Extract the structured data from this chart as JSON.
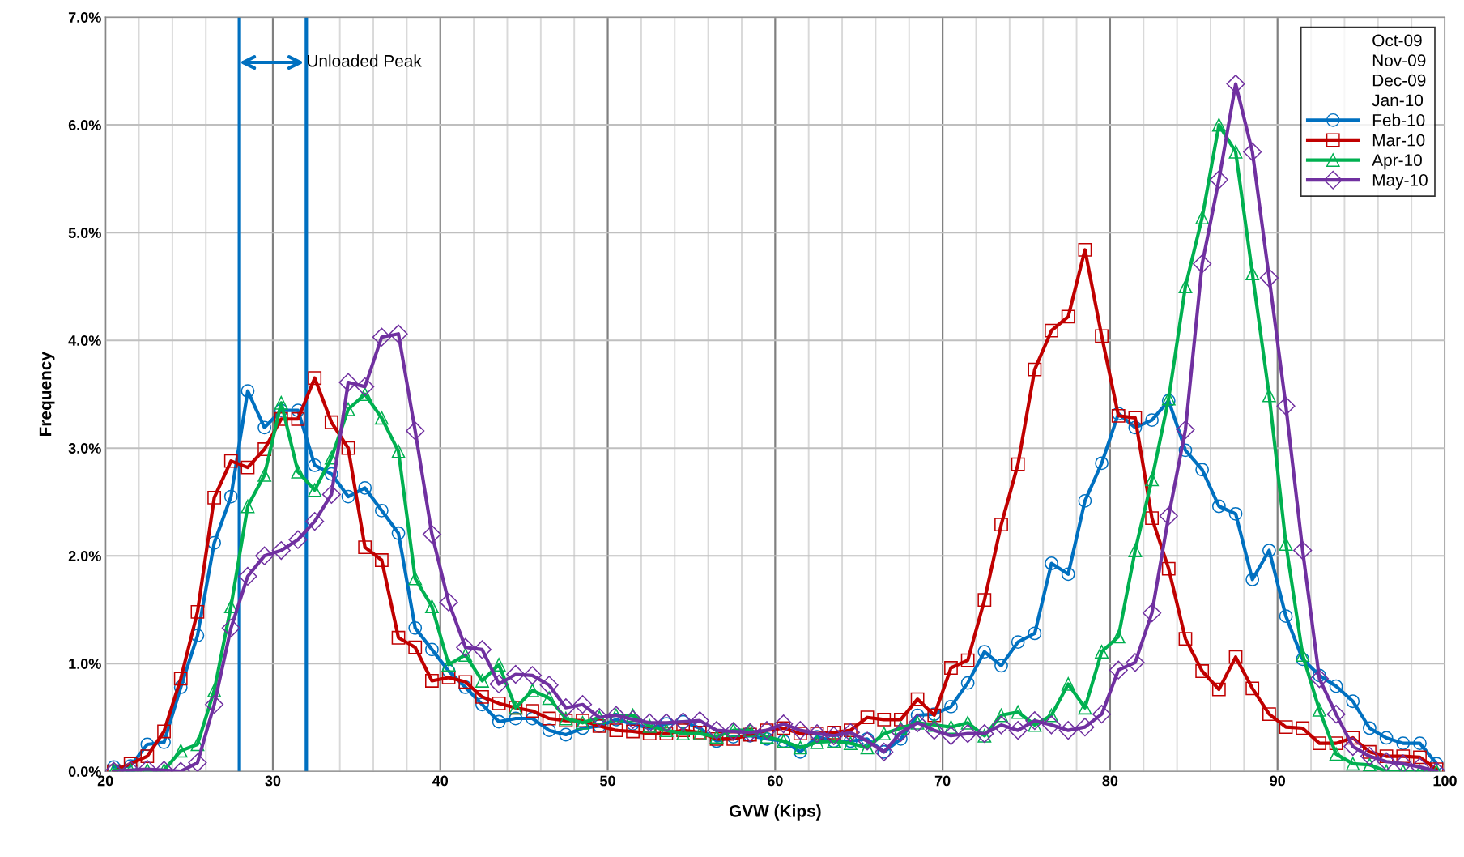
{
  "chart_data": {
    "type": "line",
    "xlabel": "GVW (Kips)",
    "ylabel": "Frequency",
    "x": [
      20.5,
      21.5,
      22.5,
      23.5,
      24.5,
      25.5,
      26.5,
      27.5,
      28.5,
      29.5,
      30.5,
      31.5,
      32.5,
      33.5,
      34.5,
      35.5,
      36.5,
      37.5,
      38.5,
      39.5,
      40.5,
      41.5,
      42.5,
      43.5,
      44.5,
      45.5,
      46.5,
      47.5,
      48.5,
      49.5,
      50.5,
      51.5,
      52.5,
      53.5,
      54.5,
      55.5,
      56.5,
      57.5,
      58.5,
      59.5,
      60.5,
      61.5,
      62.5,
      63.5,
      64.5,
      65.5,
      66.5,
      67.5,
      68.5,
      69.5,
      70.5,
      71.5,
      72.5,
      73.5,
      74.5,
      75.5,
      76.5,
      77.5,
      78.5,
      79.5,
      80.5,
      81.5,
      82.5,
      83.5,
      84.5,
      85.5,
      86.5,
      87.5,
      88.5,
      89.5,
      90.5,
      91.5,
      92.5,
      93.5,
      94.5,
      95.5,
      96.5,
      97.5,
      98.5,
      99.5
    ],
    "series": [
      {
        "name": "Oct-09",
        "values": [
          null,
          null,
          null,
          null,
          null,
          null,
          null,
          null,
          null,
          null,
          null,
          null,
          null,
          null,
          null,
          null,
          null,
          null,
          null,
          null,
          null,
          null,
          null,
          null,
          null,
          null,
          null,
          null,
          null,
          null,
          null,
          null,
          null,
          null,
          null,
          null,
          null,
          null,
          null,
          null,
          null,
          null,
          null,
          null,
          null,
          null,
          null,
          null,
          null,
          null,
          null,
          null,
          null,
          null,
          null,
          null,
          null,
          null,
          null,
          null,
          null,
          null,
          null,
          null,
          null,
          null,
          null,
          null,
          null,
          null,
          null,
          null,
          null,
          null,
          null,
          null,
          null,
          null,
          null,
          null
        ]
      },
      {
        "name": "Nov-09",
        "values": [
          null,
          null,
          null,
          null,
          null,
          null,
          null,
          null,
          null,
          null,
          null,
          null,
          null,
          null,
          null,
          null,
          null,
          null,
          null,
          null,
          null,
          null,
          null,
          null,
          null,
          null,
          null,
          null,
          null,
          null,
          null,
          null,
          null,
          null,
          null,
          null,
          null,
          null,
          null,
          null,
          null,
          null,
          null,
          null,
          null,
          null,
          null,
          null,
          null,
          null,
          null,
          null,
          null,
          null,
          null,
          null,
          null,
          null,
          null,
          null,
          null,
          null,
          null,
          null,
          null,
          null,
          null,
          null,
          null,
          null,
          null,
          null,
          null,
          null,
          null,
          null,
          null,
          null,
          null,
          null
        ]
      },
      {
        "name": "Dec-09",
        "values": [
          null,
          null,
          null,
          null,
          null,
          null,
          null,
          null,
          null,
          null,
          null,
          null,
          null,
          null,
          null,
          null,
          null,
          null,
          null,
          null,
          null,
          null,
          null,
          null,
          null,
          null,
          null,
          null,
          null,
          null,
          null,
          null,
          null,
          null,
          null,
          null,
          null,
          null,
          null,
          null,
          null,
          null,
          null,
          null,
          null,
          null,
          null,
          null,
          null,
          null,
          null,
          null,
          null,
          null,
          null,
          null,
          null,
          null,
          null,
          null,
          null,
          null,
          null,
          null,
          null,
          null,
          null,
          null,
          null,
          null,
          null,
          null,
          null,
          null,
          null,
          null,
          null,
          null,
          null,
          null
        ]
      },
      {
        "name": "Jan-10",
        "values": [
          null,
          null,
          null,
          null,
          null,
          null,
          null,
          null,
          null,
          null,
          null,
          null,
          null,
          null,
          null,
          null,
          null,
          null,
          null,
          null,
          null,
          null,
          null,
          null,
          null,
          null,
          null,
          null,
          null,
          null,
          null,
          null,
          null,
          null,
          null,
          null,
          null,
          null,
          null,
          null,
          null,
          null,
          null,
          null,
          null,
          null,
          null,
          null,
          null,
          null,
          null,
          null,
          null,
          null,
          null,
          null,
          null,
          null,
          null,
          null,
          null,
          null,
          null,
          null,
          null,
          null,
          null,
          null,
          null,
          null,
          null,
          null,
          null,
          null,
          null,
          null,
          null,
          null,
          null,
          null
        ]
      },
      {
        "name": "Feb-10",
        "color": "#0070c0",
        "marker": "circle",
        "values": [
          0.04,
          0.05,
          0.25,
          0.27,
          0.78,
          1.26,
          2.12,
          2.55,
          3.53,
          3.19,
          3.35,
          3.35,
          2.84,
          2.76,
          2.55,
          2.63,
          2.42,
          2.21,
          1.33,
          1.13,
          0.93,
          0.78,
          0.62,
          0.46,
          0.49,
          0.49,
          0.38,
          0.34,
          0.4,
          0.42,
          0.48,
          0.44,
          0.4,
          0.44,
          0.46,
          0.4,
          0.28,
          0.32,
          0.33,
          0.3,
          0.28,
          0.18,
          0.32,
          0.28,
          0.28,
          0.3,
          0.18,
          0.3,
          0.52,
          0.53,
          0.6,
          0.82,
          1.11,
          0.98,
          1.2,
          1.28,
          1.93,
          1.83,
          2.51,
          2.86,
          3.32,
          3.19,
          3.26,
          3.44,
          2.98,
          2.8,
          2.46,
          2.39,
          1.78,
          2.05,
          1.44,
          1.04,
          0.89,
          0.79,
          0.65,
          0.4,
          0.31,
          0.26,
          0.26,
          0.07
        ]
      },
      {
        "name": "Mar-10",
        "color": "#c00000",
        "marker": "square",
        "values": [
          0.0,
          0.07,
          0.14,
          0.37,
          0.86,
          1.48,
          2.54,
          2.88,
          2.82,
          2.99,
          3.27,
          3.27,
          3.65,
          3.24,
          3.0,
          2.08,
          1.96,
          1.24,
          1.15,
          0.84,
          0.87,
          0.83,
          0.69,
          0.63,
          0.59,
          0.56,
          0.49,
          0.47,
          0.47,
          0.42,
          0.38,
          0.37,
          0.35,
          0.35,
          0.38,
          0.36,
          0.3,
          0.3,
          0.34,
          0.38,
          0.4,
          0.35,
          0.35,
          0.36,
          0.38,
          0.5,
          0.48,
          0.48,
          0.67,
          0.52,
          0.96,
          1.03,
          1.59,
          2.29,
          2.85,
          3.73,
          4.09,
          4.22,
          4.84,
          4.04,
          3.3,
          3.28,
          2.35,
          1.88,
          1.23,
          0.93,
          0.76,
          1.06,
          0.77,
          0.53,
          0.41,
          0.4,
          0.26,
          0.26,
          0.31,
          0.18,
          0.14,
          0.14,
          0.13,
          0.02
        ]
      },
      {
        "name": "Apr-10",
        "color": "#00b050",
        "marker": "triangle",
        "values": [
          0.01,
          0.01,
          0.01,
          0.01,
          0.19,
          0.25,
          0.75,
          1.53,
          2.46,
          2.75,
          3.42,
          2.78,
          2.61,
          2.91,
          3.36,
          3.5,
          3.28,
          2.97,
          1.79,
          1.53,
          0.99,
          1.08,
          0.84,
          0.99,
          0.59,
          0.75,
          0.68,
          0.49,
          0.45,
          0.5,
          0.52,
          0.52,
          0.42,
          0.38,
          0.35,
          0.35,
          0.32,
          0.38,
          0.38,
          0.32,
          0.28,
          0.22,
          0.27,
          0.28,
          0.26,
          0.22,
          0.35,
          0.4,
          0.45,
          0.43,
          0.41,
          0.45,
          0.33,
          0.52,
          0.55,
          0.43,
          0.52,
          0.81,
          0.59,
          1.11,
          1.25,
          2.05,
          2.71,
          3.46,
          4.5,
          5.14,
          6.0,
          5.75,
          4.62,
          3.49,
          2.11,
          1.08,
          0.57,
          0.16,
          0.07,
          0.06,
          0.0,
          0.0,
          0.0,
          0.0
        ]
      },
      {
        "name": "May-10",
        "color": "#7030a0",
        "marker": "diamond",
        "values": [
          0.0,
          0.01,
          0.02,
          0.01,
          0.0,
          0.08,
          0.62,
          1.33,
          1.81,
          2.0,
          2.05,
          2.15,
          2.32,
          2.57,
          3.61,
          3.57,
          4.03,
          4.06,
          3.16,
          2.2,
          1.57,
          1.15,
          1.13,
          0.81,
          0.9,
          0.89,
          0.8,
          0.59,
          0.62,
          0.5,
          0.52,
          0.48,
          0.45,
          0.45,
          0.46,
          0.47,
          0.38,
          0.37,
          0.36,
          0.38,
          0.44,
          0.38,
          0.35,
          0.33,
          0.36,
          0.28,
          0.18,
          0.36,
          0.45,
          0.38,
          0.33,
          0.35,
          0.35,
          0.43,
          0.38,
          0.47,
          0.43,
          0.38,
          0.41,
          0.53,
          0.94,
          1.01,
          1.47,
          2.37,
          3.17,
          4.71,
          5.49,
          6.38,
          5.75,
          4.58,
          3.39,
          2.05,
          0.86,
          0.53,
          0.23,
          0.14,
          0.09,
          0.07,
          0.04,
          0.0
        ]
      }
    ],
    "xlim": [
      20,
      100
    ],
    "xticks": [
      20,
      {
        "value": 22,
        "label": null
      },
      {
        "value": 24,
        "label": null
      },
      {
        "value": 26,
        "label": null
      },
      30,
      {
        "value": 34,
        "label": null
      },
      {
        "value": 36,
        "label": null
      },
      {
        "value": 38,
        "label": null
      },
      40,
      {
        "value": 42,
        "label": null
      },
      {
        "value": 44,
        "label": null
      },
      {
        "value": 46,
        "label": null
      },
      {
        "value": 48,
        "label": null
      },
      50,
      {
        "value": 52,
        "label": null
      },
      {
        "value": 54,
        "label": null
      },
      {
        "value": 56,
        "label": null
      },
      {
        "value": 58,
        "label": null
      },
      60,
      {
        "value": 62,
        "label": null
      },
      {
        "value": 64,
        "label": null
      },
      {
        "value": 66,
        "label": null
      },
      {
        "value": 68,
        "label": null
      },
      70,
      {
        "value": 72,
        "label": null
      },
      {
        "value": 74,
        "label": null
      },
      {
        "value": 76,
        "label": null
      },
      {
        "value": 78,
        "label": null
      },
      80,
      {
        "value": 82,
        "label": null
      },
      {
        "value": 84,
        "label": null
      },
      {
        "value": 86,
        "label": null
      },
      {
        "value": 88,
        "label": null
      },
      90,
      {
        "value": 92,
        "label": null
      },
      {
        "value": 94,
        "label": null
      },
      {
        "value": 96,
        "label": null
      },
      {
        "value": 98,
        "label": null
      },
      100
    ],
    "ylim": [
      0,
      7
    ],
    "yticks": [
      {
        "value": 0,
        "label": "0.0%"
      },
      {
        "value": 1,
        "label": "1.0%"
      },
      {
        "value": 2,
        "label": "2.0%"
      },
      {
        "value": 3,
        "label": "3.0%"
      },
      {
        "value": 4,
        "label": "4.0%"
      },
      {
        "value": 5,
        "label": "5.0%"
      },
      {
        "value": 6,
        "label": "6.0%"
      },
      {
        "value": 7,
        "label": "7.0%"
      }
    ],
    "ref_lines": [
      {
        "axis": "x",
        "value": 28,
        "color": "#0070c0"
      },
      {
        "axis": "x",
        "value": 32,
        "color": "#0070c0"
      }
    ],
    "annotations": [
      "Unloaded Peak"
    ],
    "grid": true,
    "legend": "top right",
    "line_style": "solid"
  }
}
